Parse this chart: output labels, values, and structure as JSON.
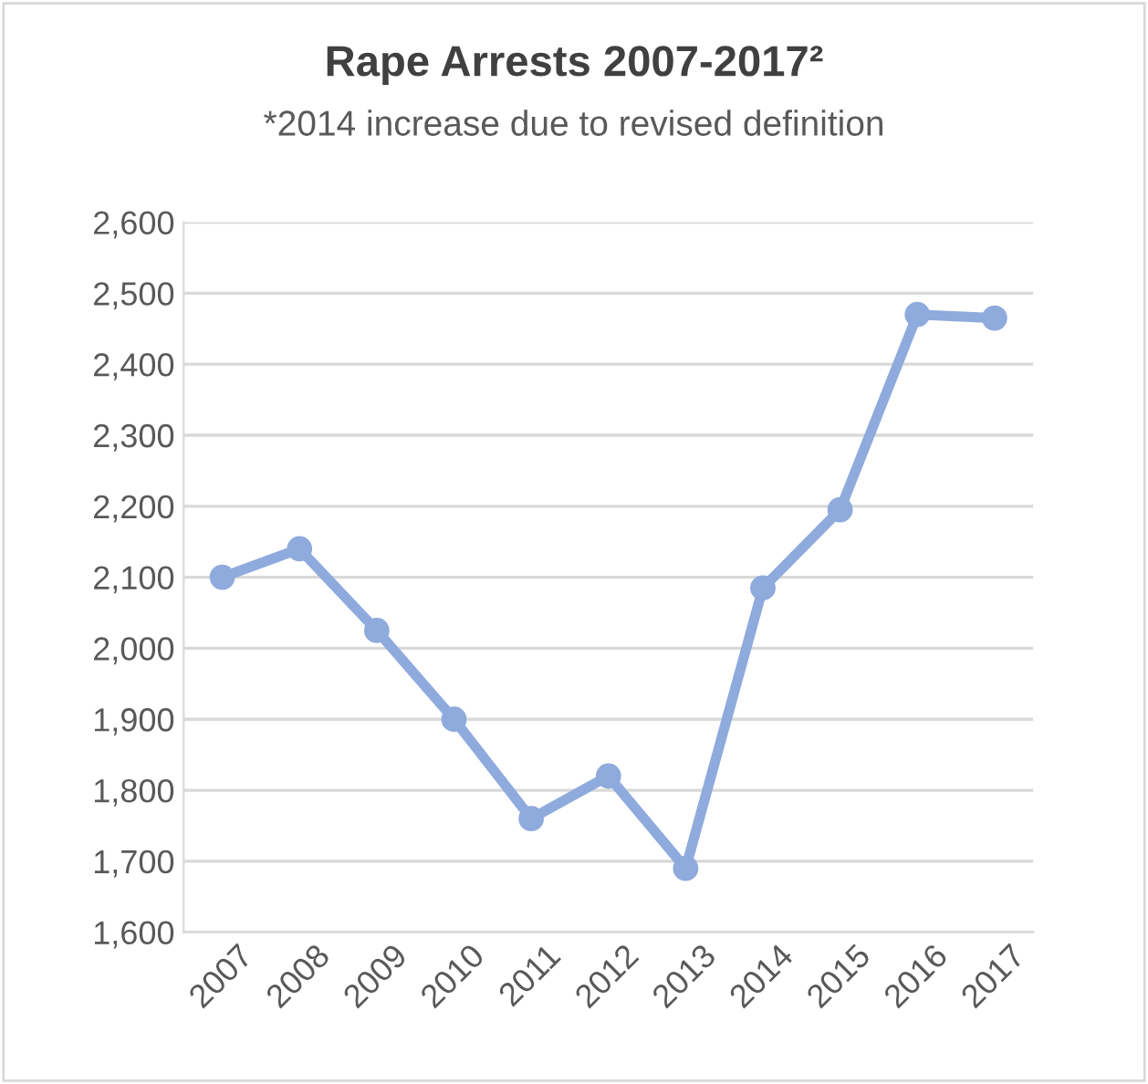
{
  "chart_data": {
    "type": "line",
    "title": "Rape Arrests 2007-2017²",
    "subtitle": "*2014 increase due to revised definition",
    "categories": [
      "2007",
      "2008",
      "2009",
      "2010",
      "2011",
      "2012",
      "2013",
      "2014",
      "2015",
      "2016",
      "2017"
    ],
    "series": [
      {
        "color": "#8faadc",
        "values": [
          2100,
          2140,
          2025,
          1900,
          1760,
          1820,
          1690,
          2085,
          2195,
          2470,
          2465
        ]
      }
    ],
    "ylim": [
      1600,
      2600
    ],
    "yticks": [
      {
        "value": 1600,
        "label": "1,600"
      },
      {
        "value": 1700,
        "label": "1,700"
      },
      {
        "value": 1800,
        "label": "1,800"
      },
      {
        "value": 1900,
        "label": "1,900"
      },
      {
        "value": 2000,
        "label": "2,000"
      },
      {
        "value": 2100,
        "label": "2,100"
      },
      {
        "value": 2200,
        "label": "2,200"
      },
      {
        "value": 2300,
        "label": "2,300"
      },
      {
        "value": 2400,
        "label": "2,400"
      },
      {
        "value": 2500,
        "label": "2,500"
      },
      {
        "value": 2600,
        "label": "2,600"
      }
    ],
    "grid": "y",
    "marker": "circle",
    "line_style": "solid"
  }
}
